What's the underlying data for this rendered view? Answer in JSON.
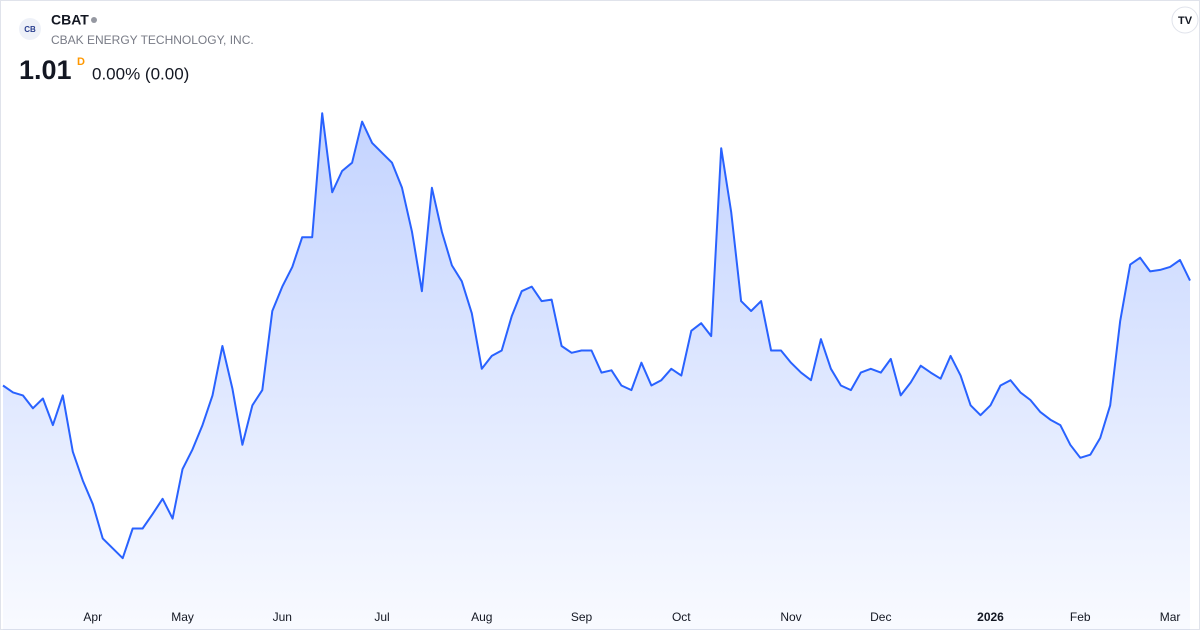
{
  "header": {
    "symbol": "CBAT",
    "company": "CBAK ENERGY TECHNOLOGY, INC.",
    "price": "1.01",
    "interval": "D",
    "change": "0.00% (0.00)"
  },
  "chart_data": {
    "type": "area",
    "color": "#2962ff",
    "ylim": [
      0.59,
      1.3
    ],
    "categories": [
      null,
      null,
      null,
      null,
      null,
      null,
      null,
      null,
      null,
      "Apr",
      null,
      null,
      null,
      null,
      null,
      null,
      null,
      null,
      "May",
      null,
      null,
      null,
      null,
      null,
      null,
      null,
      null,
      null,
      "Jun",
      null,
      null,
      null,
      null,
      null,
      null,
      null,
      null,
      null,
      "Jul",
      null,
      null,
      null,
      null,
      null,
      null,
      null,
      null,
      null,
      "Aug",
      null,
      null,
      null,
      null,
      null,
      null,
      null,
      null,
      null,
      "Sep",
      null,
      null,
      null,
      null,
      null,
      null,
      null,
      null,
      null,
      "Oct",
      null,
      null,
      null,
      null,
      null,
      null,
      null,
      null,
      null,
      null,
      "Nov",
      null,
      null,
      null,
      null,
      null,
      null,
      null,
      null,
      "Dec",
      null,
      null,
      null,
      null,
      null,
      null,
      null,
      null,
      null,
      null,
      "2026",
      null,
      null,
      null,
      null,
      null,
      null,
      null,
      null,
      "Feb",
      null,
      null,
      null,
      null,
      null,
      null,
      null,
      null,
      "Mar",
      null,
      null
    ],
    "values": [
      0.872,
      0.863,
      0.859,
      0.842,
      0.855,
      0.82,
      0.859,
      0.785,
      0.747,
      0.716,
      0.671,
      0.658,
      0.645,
      0.684,
      0.684,
      0.703,
      0.723,
      0.697,
      0.762,
      0.788,
      0.82,
      0.859,
      0.924,
      0.868,
      0.794,
      0.846,
      0.866,
      0.97,
      1.002,
      1.028,
      1.067,
      1.067,
      1.23,
      1.126,
      1.154,
      1.165,
      1.219,
      1.191,
      1.178,
      1.165,
      1.132,
      1.074,
      0.996,
      1.132,
      1.074,
      1.03,
      1.009,
      0.967,
      0.894,
      0.911,
      0.918,
      0.963,
      0.996,
      1.002,
      0.983,
      0.985,
      0.924,
      0.915,
      0.918,
      0.918,
      0.889,
      0.892,
      0.872,
      0.866,
      0.902,
      0.872,
      0.879,
      0.894,
      0.885,
      0.944,
      0.954,
      0.937,
      1.184,
      1.1,
      0.983,
      0.97,
      0.983,
      0.918,
      0.918,
      0.902,
      0.889,
      0.879,
      0.933,
      0.894,
      0.872,
      0.866,
      0.889,
      0.894,
      0.889,
      0.907,
      0.859,
      0.876,
      0.898,
      0.889,
      0.881,
      0.911,
      0.885,
      0.846,
      0.833,
      0.846,
      0.872,
      0.879,
      0.863,
      0.853,
      0.837,
      0.827,
      0.82,
      0.794,
      0.777,
      0.781,
      0.803,
      0.846,
      0.957,
      1.031,
      1.04,
      1.022,
      1.024,
      1.028,
      1.037,
      1.01
    ]
  }
}
